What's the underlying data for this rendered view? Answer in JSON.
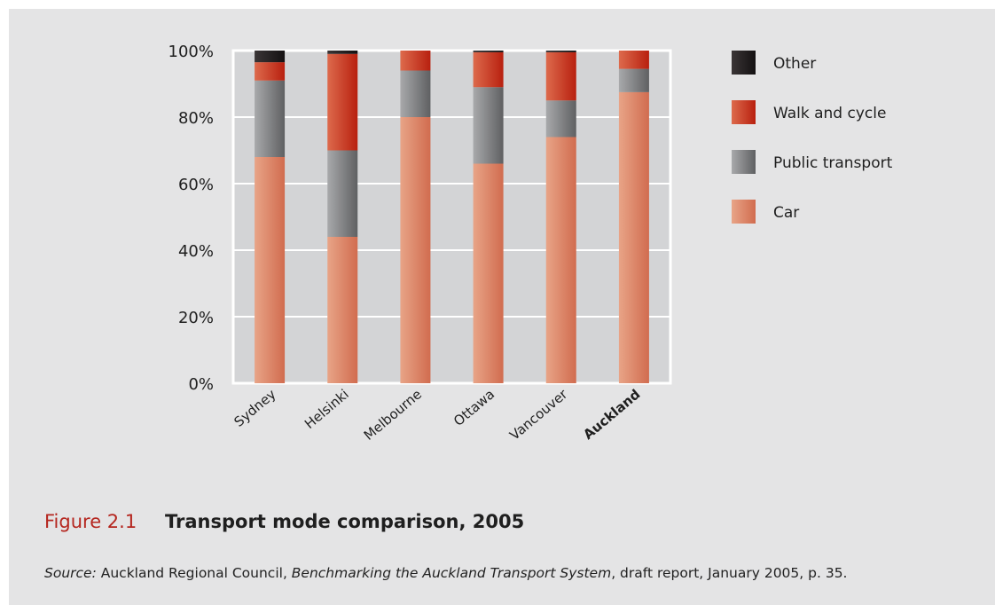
{
  "colors": {
    "panel_bg": "#e4e4e5",
    "plot_bg": "#d3d4d6",
    "gridline": "#ffffff",
    "other": "#231f20",
    "walk_and_cycle": "#c9361f",
    "public_transport": "#7d7e80",
    "car": "#e39377",
    "caption_accent": "#b5261f"
  },
  "chart_data": {
    "type": "bar",
    "stacked": true,
    "categories": [
      "Sydney",
      "Helsinki",
      "Melbourne",
      "Ottawa",
      "Vancouver",
      "Auckland"
    ],
    "emphasized_category": "Auckland",
    "series": [
      {
        "name": "Car",
        "values": [
          68,
          44,
          80,
          66,
          74,
          87.5
        ]
      },
      {
        "name": "Public transport",
        "values": [
          23,
          26,
          14,
          23,
          11,
          7
        ]
      },
      {
        "name": "Walk and cycle",
        "values": [
          5.5,
          29,
          6,
          10.5,
          14.5,
          5.5
        ]
      },
      {
        "name": "Other",
        "values": [
          3.5,
          1,
          0,
          0.5,
          0.5,
          0
        ]
      }
    ],
    "y_ticks": [
      "0%",
      "20%",
      "40%",
      "60%",
      "80%",
      "100%"
    ],
    "ylim": [
      0,
      100
    ],
    "grid": true,
    "legend_position": "right",
    "legend_order": [
      "Other",
      "Walk and cycle",
      "Public transport",
      "Car"
    ]
  },
  "caption": {
    "figure_number": "Figure 2.1",
    "title": "Transport mode comparison, 2005"
  },
  "source": {
    "label": "Source:",
    "author": " Auckland Regional Council, ",
    "work": "Benchmarking the Auckland Transport System",
    "details": ", draft report, January 2005, p. 35."
  }
}
